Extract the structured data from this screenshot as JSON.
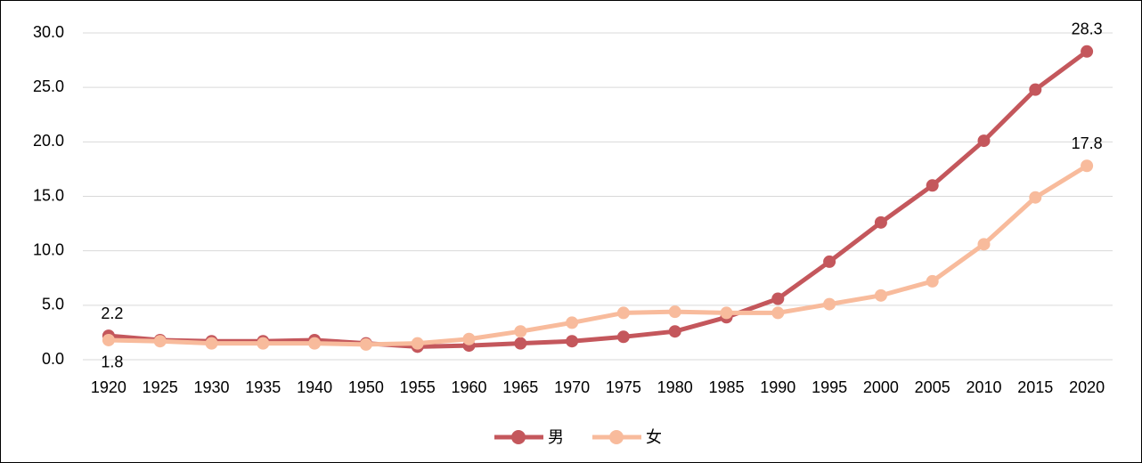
{
  "chart_data": {
    "type": "line",
    "categories": [
      "1920",
      "1925",
      "1930",
      "1935",
      "1940",
      "1950",
      "1955",
      "1960",
      "1965",
      "1970",
      "1975",
      "1980",
      "1985",
      "1990",
      "1995",
      "2000",
      "2005",
      "2010",
      "2015",
      "2020"
    ],
    "series": [
      {
        "name": "男",
        "color": "#c4575c",
        "values": [
          2.2,
          1.8,
          1.7,
          1.7,
          1.8,
          1.5,
          1.2,
          1.3,
          1.5,
          1.7,
          2.1,
          2.6,
          3.9,
          5.6,
          9.0,
          12.6,
          16.0,
          20.1,
          24.8,
          28.3
        ]
      },
      {
        "name": "女",
        "color": "#f8bb9c",
        "values": [
          1.8,
          1.7,
          1.5,
          1.5,
          1.5,
          1.4,
          1.5,
          1.9,
          2.6,
          3.4,
          4.3,
          4.4,
          4.3,
          4.3,
          5.1,
          5.9,
          7.2,
          10.6,
          14.9,
          17.8
        ]
      }
    ],
    "ylim": [
      0,
      30
    ],
    "yticks": [
      {
        "value": 0,
        "label": "0.0"
      },
      {
        "value": 5,
        "label": "5.0"
      },
      {
        "value": 10,
        "label": "10.0"
      },
      {
        "value": 15,
        "label": "15.0"
      },
      {
        "value": 20,
        "label": "20.0"
      },
      {
        "value": 25,
        "label": "25.0"
      },
      {
        "value": 30,
        "label": "30.0"
      }
    ],
    "grid": true,
    "legend": "bottom"
  }
}
